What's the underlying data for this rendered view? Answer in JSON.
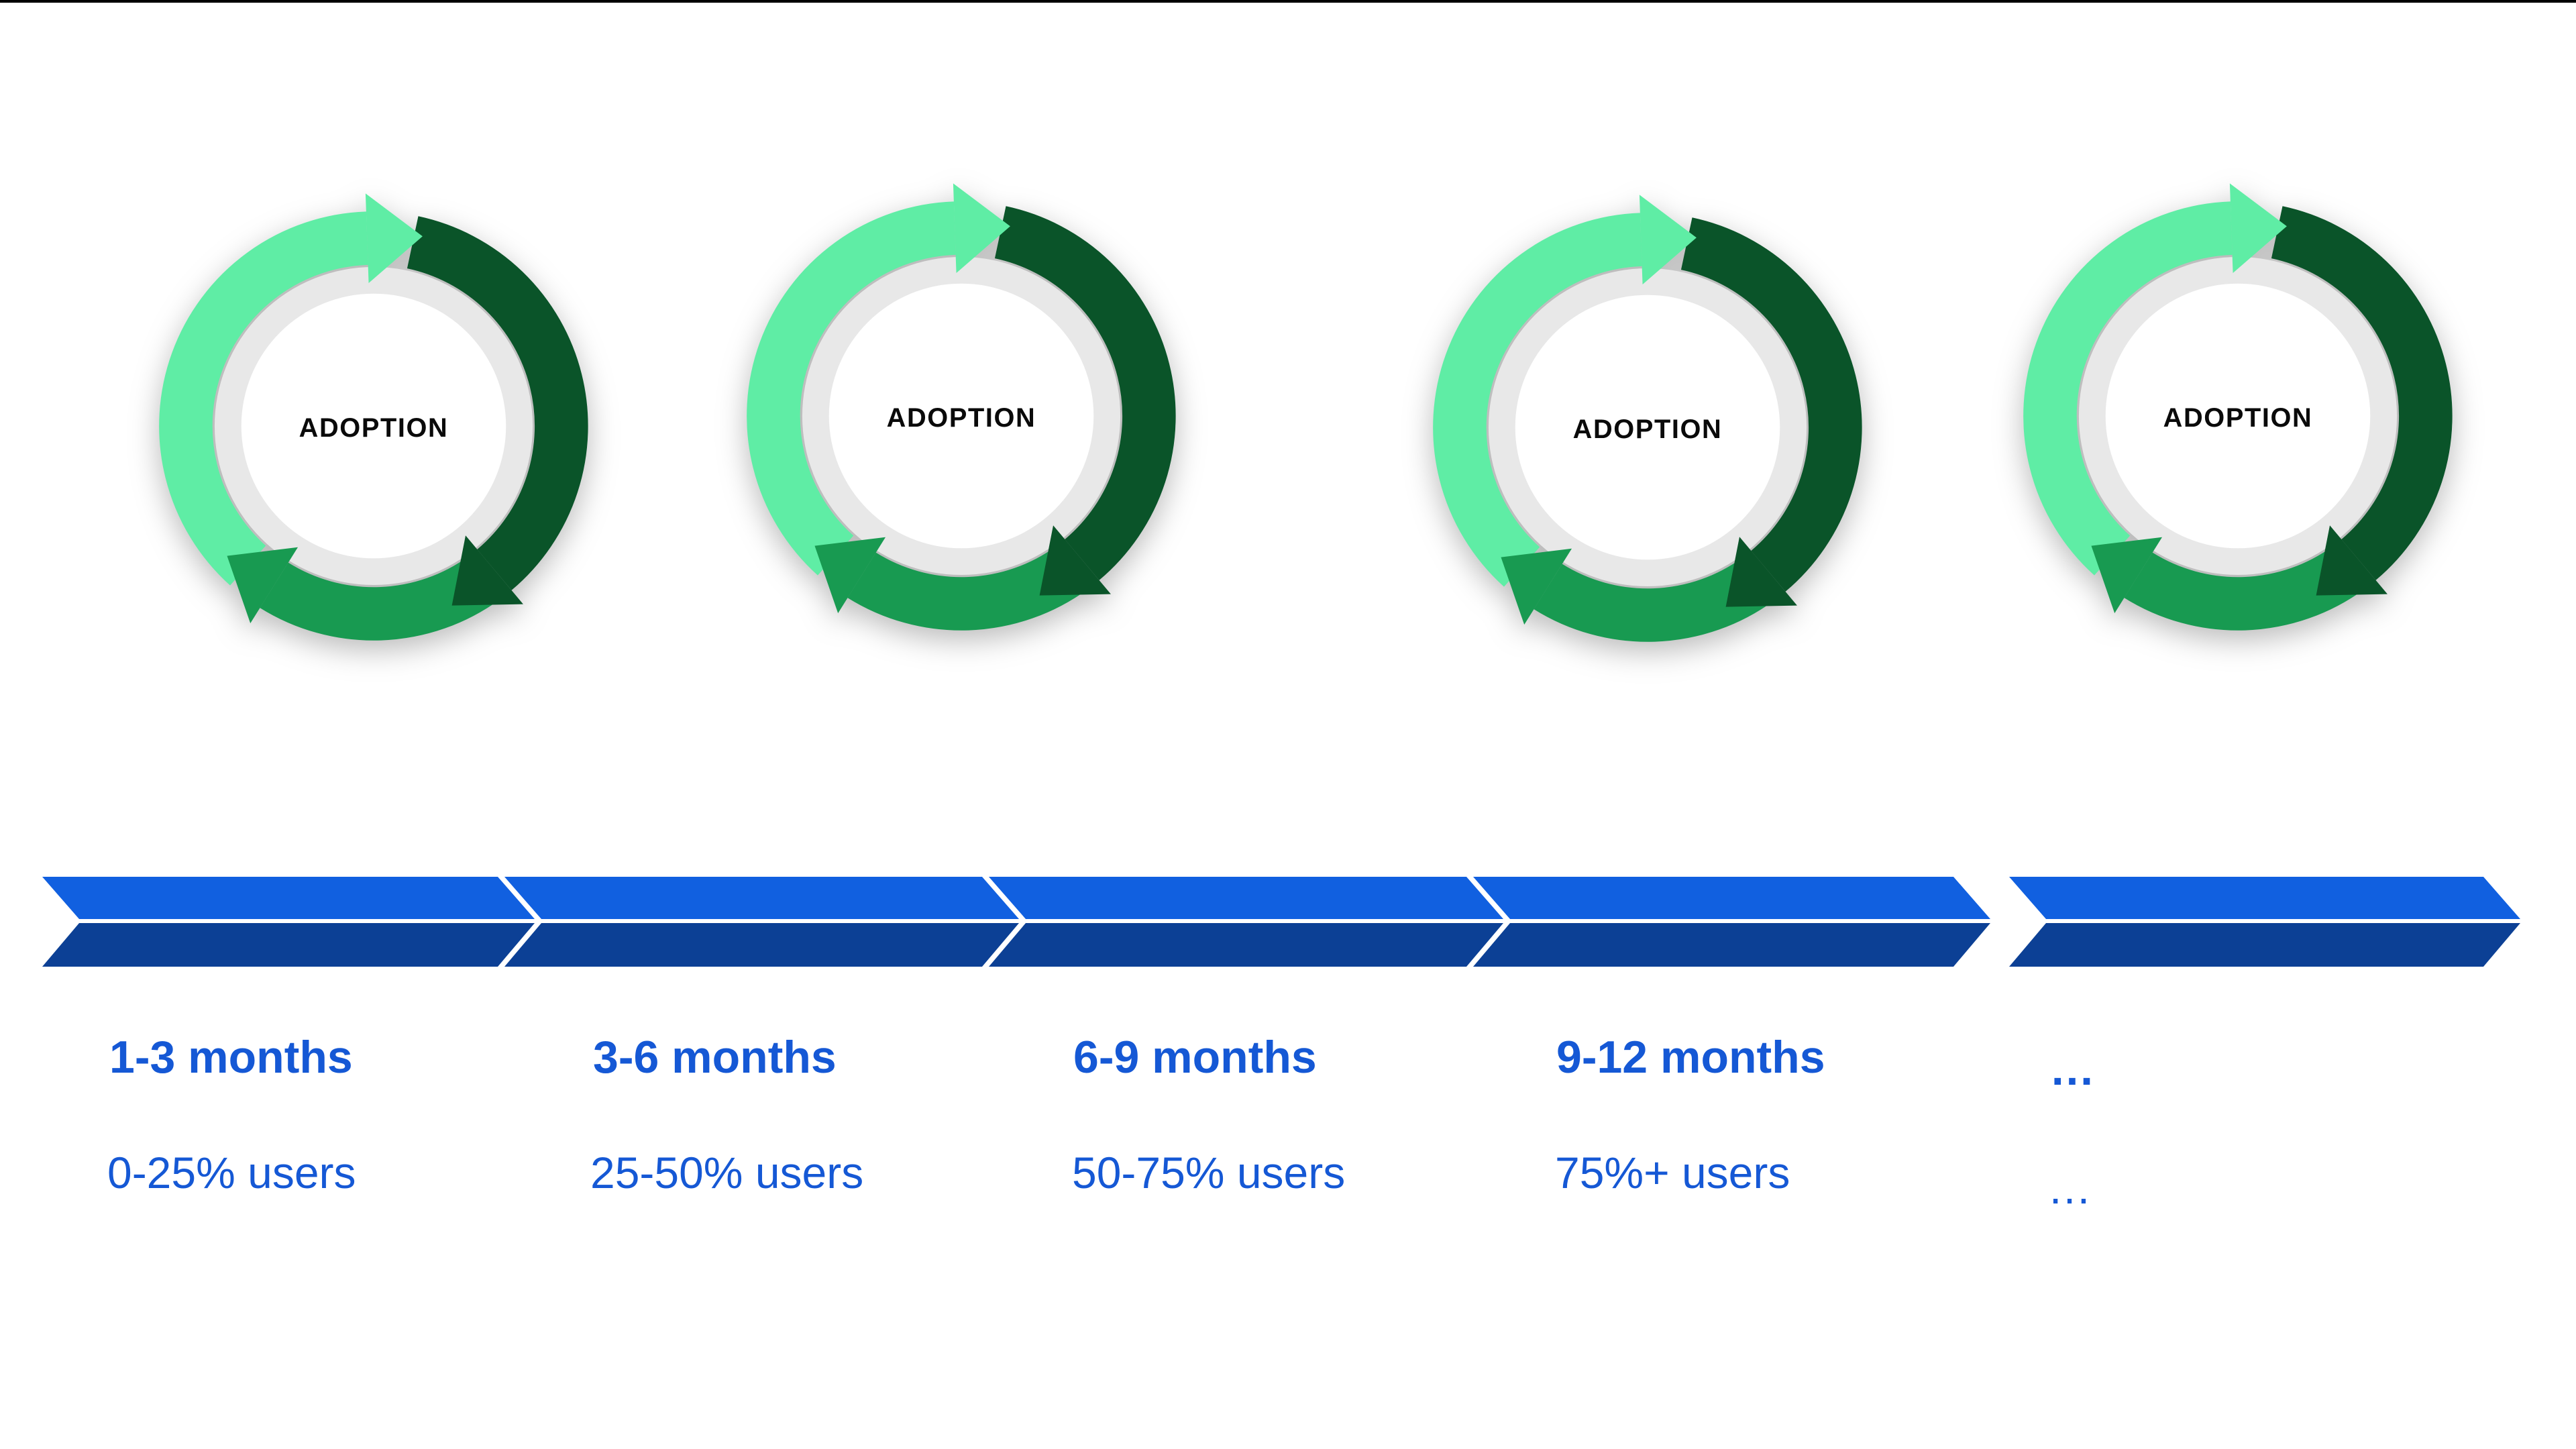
{
  "cycles": [
    {
      "label": "ADOPTION"
    },
    {
      "label": "ADOPTION"
    },
    {
      "label": "ADOPTION"
    },
    {
      "label": "ADOPTION"
    }
  ],
  "timeline": {
    "phases": [
      {
        "months": "1-3 months",
        "users": "0-25% users"
      },
      {
        "months": "3-6 months",
        "users": "25-50% users"
      },
      {
        "months": "6-9 months",
        "users": "50-75% users"
      },
      {
        "months": "9-12 months",
        "users": "75%+ users"
      },
      {
        "months": "…",
        "users": "…"
      }
    ]
  },
  "colors": {
    "mint": "#5FEDA5",
    "dark-green": "#0A5429",
    "mid-green": "#189A51",
    "ring-gray": "#E8E8E8",
    "bar-top-blue": "#1160E0",
    "bar-bottom-navy": "#0C4095",
    "label-blue": "#1558D5",
    "adoption-ink": "#0A0A0A",
    "top-border": "#000000",
    "background": "#FFFFFF"
  }
}
